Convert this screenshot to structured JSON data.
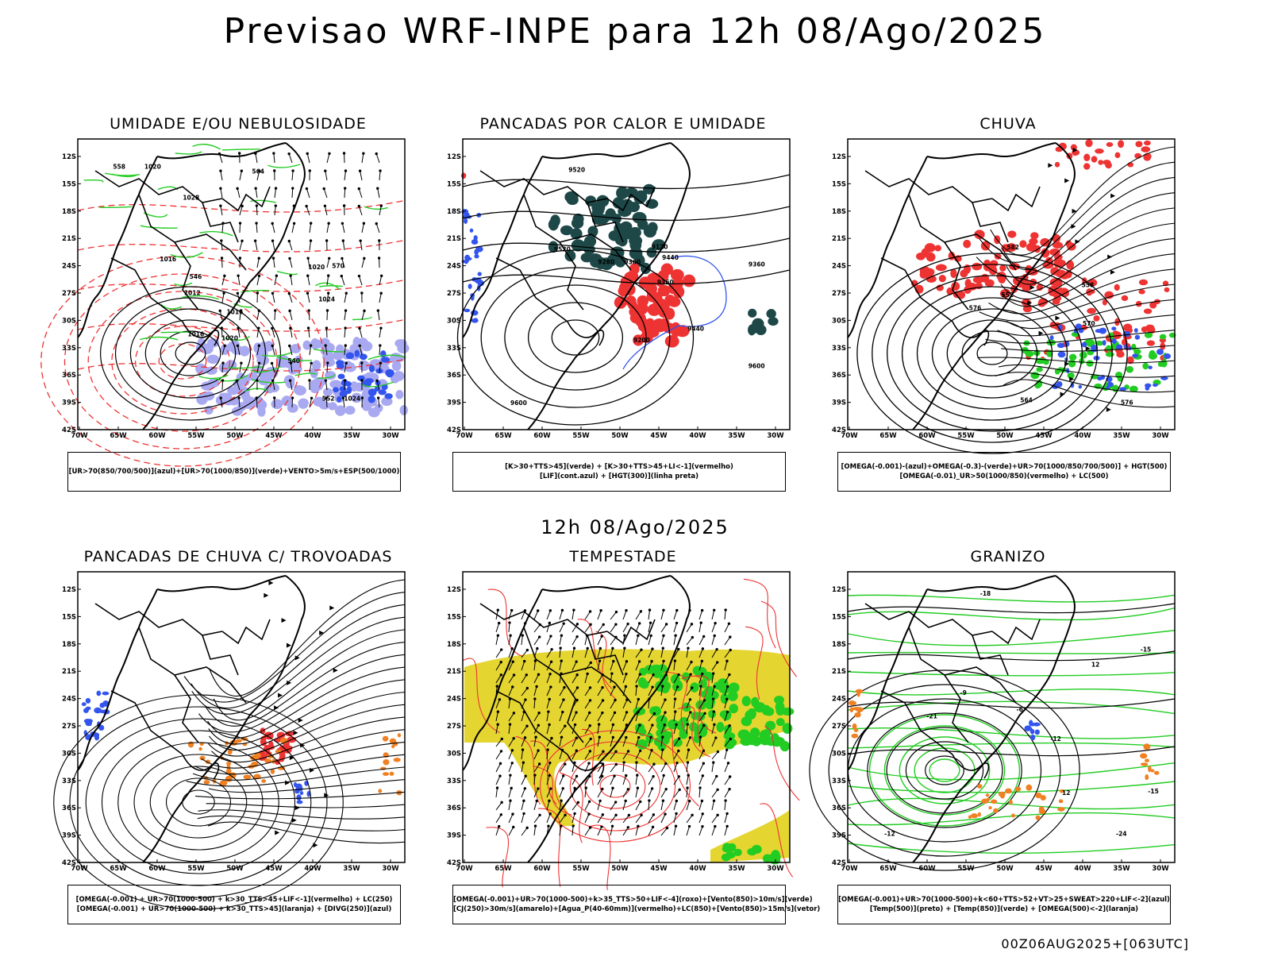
{
  "header": {
    "title": "Previsao WRF-INPE  para 12h 08/Ago/2025"
  },
  "middle": {
    "title": "12h 08/Ago/2025"
  },
  "footer": {
    "run": "00Z06AUG2025+[063UTC]"
  },
  "axes": {
    "lat_labels": [
      "12S",
      "15S",
      "18S",
      "21S",
      "24S",
      "27S",
      "30S",
      "33S",
      "36S",
      "39S",
      "42S"
    ],
    "lon_labels": [
      "70W",
      "65W",
      "60W",
      "55W",
      "50W",
      "45W",
      "40W",
      "35W",
      "30W"
    ]
  },
  "panels": [
    {
      "title": "UMIDADE E/OU NEBULOSIDADE",
      "legend": [
        "[UR>70(850/700/500)](azul)+[UR>70(1000/850)](verde)+VENTO>5m/s+ESP(500/1000)"
      ],
      "labels": [
        "1016",
        "1016",
        "1020",
        "1024",
        "1024",
        "1028",
        "1020",
        "1012",
        "1016",
        "1020",
        "570",
        "564",
        "558",
        "552",
        "546",
        "540"
      ]
    },
    {
      "title": "PANCADAS POR CALOR E UMIDADE",
      "legend": [
        "[K>30+TTS>45](verde) + [K>30+TTS>45+LI<-1](vermelho)",
        "[LIF](cont.azul) + [HGT(300)](linha preta)"
      ],
      "labels": [
        "9600",
        "9600",
        "9520",
        "9520",
        "9440",
        "9440",
        "9360",
        "9360",
        "9280",
        "9200",
        "9120",
        "9360"
      ]
    },
    {
      "title": "CHUVA",
      "legend": [
        "[OMEGA(-0.001)-(azul)+OMEGA(-0.3)-(verde)+UR>70(1000/850/700/500)] + HGT(500)",
        "[OMEGA(-0.01)_UR>50(1000/850)(vermelho) + LC(500)"
      ],
      "labels": [
        "582",
        "576",
        "570",
        "564",
        "558",
        "552",
        "576"
      ]
    },
    {
      "title": "PANCADAS DE CHUVA C/ TROVOADAS",
      "legend": [
        "[OMEGA(-0.001) + UR>70(1000-500) + k>30_TTS>45+LIF<-1](vermelho) + LC(250)",
        "[OMEGA(-0.001) + UR>70(1000-500) + k>30_TTS>45](laranja) + [DIVG(250)](azul)"
      ],
      "labels": []
    },
    {
      "title": "TEMPESTADE",
      "legend": [
        "[OMEGA(-0.001)+UR>70(1000-500)+k>35_TTS>50+LIF<-4](roxo)+[Vento(850)>10m/s](verde)",
        "[CJ(250)>30m/s](amarelo)+[Agua_P(40-60mm)](vermelho)+LC(850)+[Vento(850)>15m/s](vetor)"
      ],
      "labels": []
    },
    {
      "title": "GRANIZO",
      "legend": [
        "[OMEGA(-0.001)+UR>70(1000-500)+k<60+TTS>52+VT>25+SWEAT>220+LIF<-2](azul)",
        "[Temp(500)](preto) + [Temp(850)](verde) + [OMEGA(500)<-2](laranja)"
      ],
      "labels": [
        "-12",
        "-15",
        "-21",
        "-24",
        "-12",
        "-18",
        "-15",
        "12",
        "12",
        "-9",
        "-6"
      ]
    }
  ],
  "colors": {
    "green": "#22cc22",
    "blue": "#3355ee",
    "red": "#ee3333",
    "lavender": "#a9a9f2",
    "yellow": "#e4d531",
    "darkgreen": "#1e4848",
    "orange": "#f08022"
  }
}
